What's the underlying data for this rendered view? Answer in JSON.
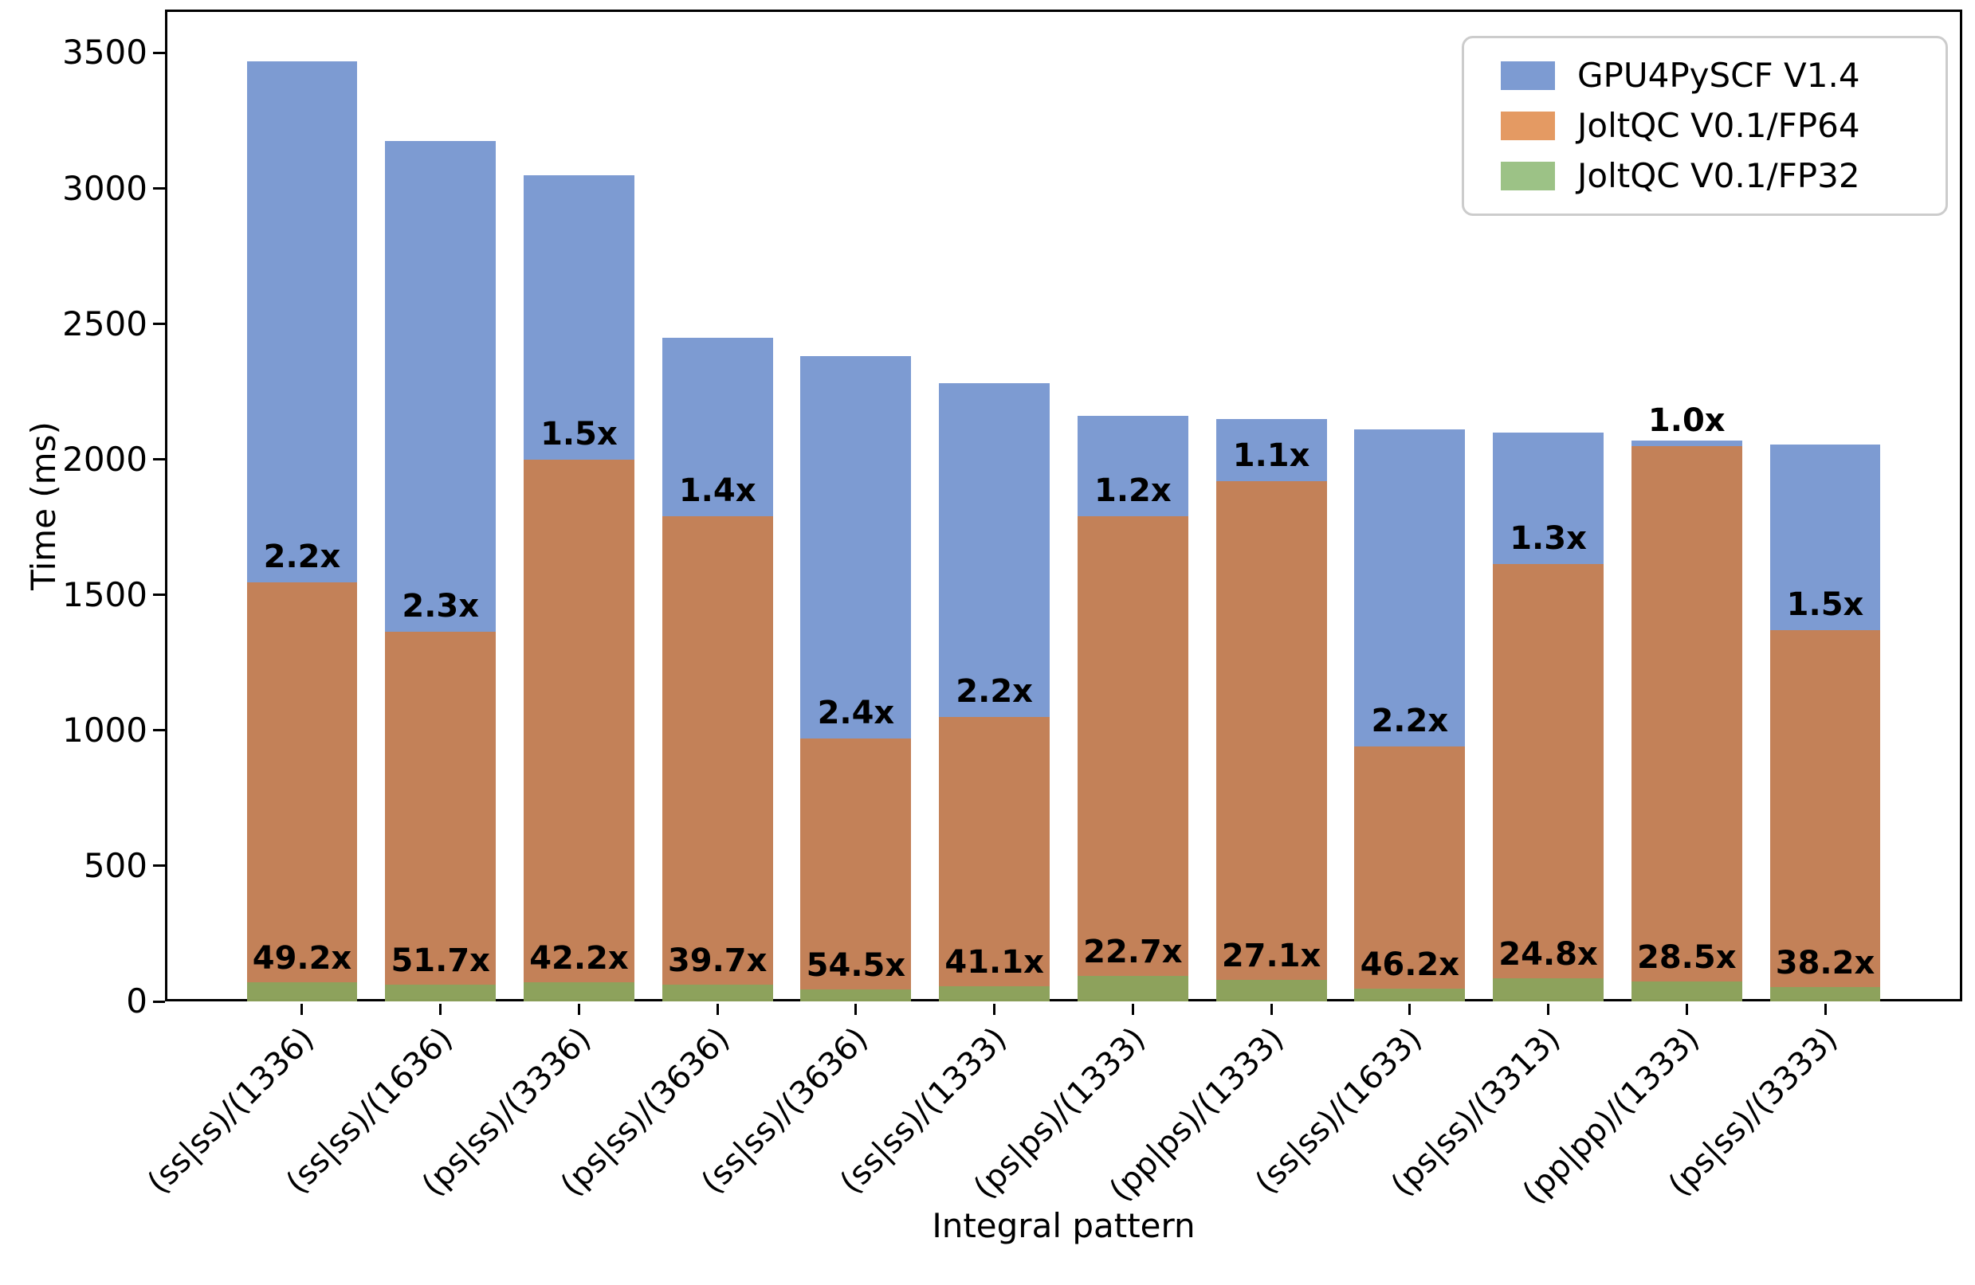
{
  "chart_data": {
    "type": "bar",
    "bar_mode": "overlay",
    "title": "",
    "xlabel": "Integral pattern",
    "ylabel": "Time (ms)",
    "ylim": [
      0,
      3660
    ],
    "yticks": [
      0,
      500,
      1000,
      1500,
      2000,
      2500,
      3000,
      3500
    ],
    "grid": false,
    "categories": [
      "(ss|ss)/(1336)",
      "(ss|ss)/(1636)",
      "(ps|ss)/(3336)",
      "(ps|ss)/(3636)",
      "(ss|ss)/(3636)",
      "(ss|ss)/(1333)",
      "(ps|ps)/(1333)",
      "(pp|ps)/(1333)",
      "(ss|ss)/(1633)",
      "(ps|ss)/(3313)",
      "(pp|pp)/(1333)",
      "(ps|ss)/(3333)"
    ],
    "series": [
      {
        "name": "GPU4PySCF V1.4",
        "color": "#5179c3",
        "values": [
          3470,
          3175,
          3050,
          2450,
          2380,
          2280,
          2160,
          2150,
          2110,
          2100,
          2070,
          2055
        ]
      },
      {
        "name": "JoltQC V0.1/FP64",
        "color": "#db782f",
        "values": [
          1545,
          1365,
          2000,
          1790,
          970,
          1050,
          1790,
          1920,
          940,
          1615,
          2050,
          1370
        ]
      },
      {
        "name": "JoltQC V0.1/FP32",
        "color": "#7bad5d",
        "values": [
          70,
          61,
          72,
          62,
          44,
          55,
          95,
          79,
          46,
          85,
          73,
          54
        ]
      }
    ],
    "bar_alpha": 0.75,
    "annotations_top": [
      "2.2x",
      "2.3x",
      "1.5x",
      "1.4x",
      "2.4x",
      "2.2x",
      "1.2x",
      "1.1x",
      "2.2x",
      "1.3x",
      "1.0x",
      "1.5x"
    ],
    "annotations_bottom": [
      "49.2x",
      "51.7x",
      "42.2x",
      "39.7x",
      "54.5x",
      "41.1x",
      "22.7x",
      "27.1x",
      "46.2x",
      "24.8x",
      "28.5x",
      "38.2x"
    ],
    "legend": {
      "position": "upper right",
      "entries": [
        "GPU4PySCF V1.4",
        "JoltQC V0.1/FP64",
        "JoltQC V0.1/FP32"
      ]
    }
  }
}
